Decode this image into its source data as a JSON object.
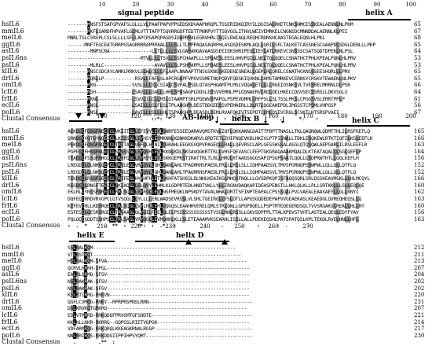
{
  "species": [
    "hsIL6",
    "mmIL6",
    "meIL6",
    "ggIL6",
    "asIL6",
    "psIL6ns",
    "psIL6",
    "xlIL6",
    "drIL6",
    "omIL6",
    "lcIL6",
    "frIL6",
    "ecIL6",
    "poIL6"
  ],
  "consensus_label": "Clustal Consensus",
  "block1": {
    "ticks": [
      "10",
      "20",
      "30",
      "40",
      "50",
      "60",
      "70",
      "80",
      "90",
      "100"
    ],
    "annotations": {
      "signal_peptide": "signal peptide",
      "helix_a": "helix A"
    },
    "sequences": [
      "-------MNSFSTSAFGPVAFSLGLLLVLPAAFPAPVPPGEDSKDVAAPHRQPLTSSERIDKQIRYILDGISALRKETCNKSNMCESSKEALAENNLNLPKM",
      "-------MKFLSARDFHPVAFLGLMLVTTTAFPTSQVRRGDFTEDTTPNRPVYTTSQVGGLITHVLWEIVEMRKELCNGNSDCMNNDDALAENNLKLPEI",
      "MNRLTSLCSRSPLCSLSLLLLSFLLAPCPGAPQPAGDSIDAPRPALEGRVHRLISQILEWIAQLREQHCRDNSHCAASTEGALEQNLHLPKL",
      "------MNFTEGCEATGRRPGSAGRRRRAPRPAALLLLSLLTLPPPAQASAQRPHLASQSDESKMLAQLLGRILSFLTALKETCASSNEGCGAAPDLSDGLDENLLLPKP",
      "--------MNPSCRA---------------LLTLLLLLSVLGAPAHGAVAASDSEEIEKSHRIPEQLIEYLATLRKEVCSNSSSCSATSQDTDPEKLNLPSL",
      "--------------------------MTVLLLLTSVLLSSPCHAAPLLLSPDAESLEESLHHVPQILLNELTQLQQELCSNATHCTPHLKPEALPQNLHLPRV",
      "--------MLRLC------------------AVAVLLLSLPSHPAPPLLSPDAESLEESLHHVPQILLNELTQLQQELCSNATHCTPHLKPEALPQNLHLPRV",
      "-------MNSCSDCAYLAMKLRRKVLSLWLCLLLFLAAPLNNAAPTTNSGSKNSSKEDENIGNEALLGEMLRLQRELCSNATHCKNSSSEESHQRLLLPRV",
      "-------MQRLLP-----------RSVLLFAFLSLAPCRGAPFVPGVSSMETNQPQDVFQDSKIQVKNLLKMSTAMRKEVCERNSYCRSKVTEWAENLNLPKV",
      "-------MKN-------------SVSLLLLSLCSIALCSVPALPSDLQTASPHQAMTPLMSLVQQALETLLLLRGEIDSNKSVLTVESRELMRRNLDLPSR",
      "-------MSH-------------LSAVLLLGALLLHHLSPASAGPLDDSLEDSVVEMNLPPLQSNAERVLRDLDELHKELCDGVSECSSRSLLDKVSGLV",
      "-------MKNL------------LSVVLILCLLMILGTAAMPTSRLPGEWVDPAPGLPSPEVDRMLLRFPSLLSLTSSLPKSLCPGGSVSLERRTPPLP",
      "-------MNSL------------LSAILLLGLFLSLTPLAAGHPLDESTDDGEDSSVPEMAERLLDLRTLQGEAHEPDLIMGSSTCPSMLVHPGSP",
      "-------MNSL------------LAVILLLSLLLHLTSPAAGHPLDEASDLDEMLRVAFQKEVTSEPDTQLMLDSEVCRGLSCVKTLKTSRSPVAEI"
    ],
    "numbers": [
      "65",
      "67",
      "68",
      "65",
      "64",
      "53",
      "53",
      "65",
      "65",
      "66",
      "64",
      "61",
      "56",
      "67"
    ],
    "consensus": "                          .   ::*:  *                   :   :               .      *.    :    .   "
  },
  "block2": {
    "ticks": [
      "110",
      "120",
      "130",
      "140",
      "150",
      "160",
      "170",
      "180",
      "190",
      "200"
    ],
    "annotations": {
      "af_loop": "AB-loop",
      "helix_b": "helix B",
      "helix_c": "helix C"
    },
    "sequences": [
      "AEKDGCFQSGFNEETCLVKIITGLLEFEVYLEYLQNRFESSEEQARAVQMSTKVLIQFLQKKAKNLDAITTPDPTTNASLLTKLQAQNQWLQDMTTHLILRSFKEFLQ",
      "QRNDGCYQTGYNQEICLLKISSGLLEYHSYLEYMKNNLKDNKKDKARVLQRDTETLIHIFNQEVKDLHKIVLPTPISNALLTDKLESQKEWLRTKTIQFILKSLEEFLK",
      "PEKDGCFQSGFNQETCLTRITAGLVEFQLHLNILQGRAHLEEGKGVQPVPAGEQLLRALLQEVRSCLAPLGESSHSSALASGLQTQSQWLAEPSARLILRSLEEFLR",
      "PGPEGCFHSGFNLETCLSRVSSGLLEYQVHLEYLKKNLKDLSKSAVQGKRTTKLLVHSFQEVASCLEEPTGKGRAQAAAKMQALDLKTEATAQALLLSGLQEFLP",
      "TEADGCFSSQFNHGICLQRVFQGLLEYRVYLEYLSKKGEPKSTIRATTRLTLRLLHRQLKTAAGSGGGSAPIPSGPSAATLQQLLQSDPRWTHTLLQGLKEFLH",
      "LREGDCLQLNHSQEFCLQRVLEGLVRYQVLLQHLQANLAHLTPAGRRHSPAEDLFRLLLRSLSLLIQHPAADSVLTMVSPGRNQPSSWPWLLQLLQLLQTFLQ",
      "LREGDCLQLNHSQEFCLQRVLEGLVRYQVLLQHLQANLAHLTPAGRRHSPAEDLFRLLLRSLSLLIQHPAADSVLTMVSPGRNQPSSWPWLLQLLQLLQTFLQ",
      "TEKDGCLRSGFSEETCLQRIFEGLHYYHFHLETLQKHFATSHSSLDLNHLKEAIKGLMHQSFNQLLLGVSDPKQPISFAQQSQRLSRLDSSKEAVMSKLLLHLMCQYL",
      "KEGDGCLRNSFTEEICLQKIAQGLLELQVYLEHMLKLGDPRTEDLHNDTVKLLYLLIRGNVDAQKAPIDEHSPENSTLLHKLQLKLLPLLSRTKKLLLSLLEQLQE",
      "EKLRLCYNSSFNRETCLRRLSQGLLEYRVLLEYLNSFMEQKLNPSKDYTAVALWHALDRTTSFINPTEAPALCPSSSQALPVLVAEALEAASAEYLLGLLRNYI",
      "DQFEQCRRDVRVGPCLQTVSQGLLLYLLLLERLWADSEVRSSLVLSHLTGEIRGLLFSLDTLLAPGSGQDEDEPAPVVGEAEKASLKEAEDGLQVREQHEQSLLQ",
      "KEFEVCHLLKDSRQECLQRLSQGLLVYLHLLEHLQQGQSLEAAHHVERELQMLSTRLQNLLGPGPDQELLPSPTMTEDEGERDSQLTVVSRGAKVLREALLHLLHY",
      "ESFESCLQESRSRGECLTRVAAGLQLYQILFEELQLELPSSSSSSSSSSSSTVSGLRNLRSSLLGKVSDPPPLTTALKPDVSTVHTLASTEALQEQLEDYFYAV",
      "PQLQQCSDDTSSHPSCLQRLSAGLYRYQGLLEVMQHKLKLLSLETEAAAMVKSEARHLISSLLALLPDEKEQSHLPATSPATQSLKPLTEKDLRVELHNLLHFL"
    ],
    "numbers": [
      "165",
      "166",
      "163",
      "164",
      "156",
      "152",
      "152",
      "166",
      "160",
      "162",
      "163",
      "160",
      "156",
      "163"
    ],
    "consensus": ":  .  *      .  **  :    **:  :  .*   :                .      .     :   .  :  .       :          "
  },
  "block3": {
    "ticks": [
      "210",
      "220",
      "230",
      "240",
      "250",
      "260",
      "270"
    ],
    "annotations": {
      "helix_e": "helix E",
      "helix_d": "helix D"
    },
    "sequences": [
      "SSLRALRQM---------------------------------------------------",
      "VTLRSTRQT-----------------------------------------------------",
      "HSLRALRQM-SFVA--------------------------------------------------",
      "QCRVLHRKH-SPGL---------------------------------------------------",
      "EALRLQRMQ-SFSV---------------------------------------------------",
      "NSLRAKRAK-SFSV---------------------------------------------------",
      "NSLRAKRAK-SFSV---------------------------------------------------",
      "KSLRTIRRG-RRKVN--------------------------------------------------",
      "QGFLCVMQG-RNKY--RPRPRSPNSLRRN-------------------------------------",
      "DSLKRVKQTGRKRQ--------------------------------------------------",
      "EDLVTMRRD-RRKQDQFPRVGMTGFSHDTE------------------------------------",
      "KKLKLLKKR-RKRRG--GQPGSLRIETVQPGK---------------------------------",
      "VDFARMRQG-RRKQRQLKKEAGKRNALRGSP-----------------------------------",
      "NNLRRIRQS-RRKDDGIIPPIHPSYQMT--------------------------------------"
    ],
    "numbers": [
      "212",
      "211",
      "213",
      "207",
      "204",
      "202",
      "202",
      "220",
      "231",
      "207",
      "221",
      "214",
      "217",
      "230"
    ],
    "consensus": "  .        .**  :                                                "
  }
}
